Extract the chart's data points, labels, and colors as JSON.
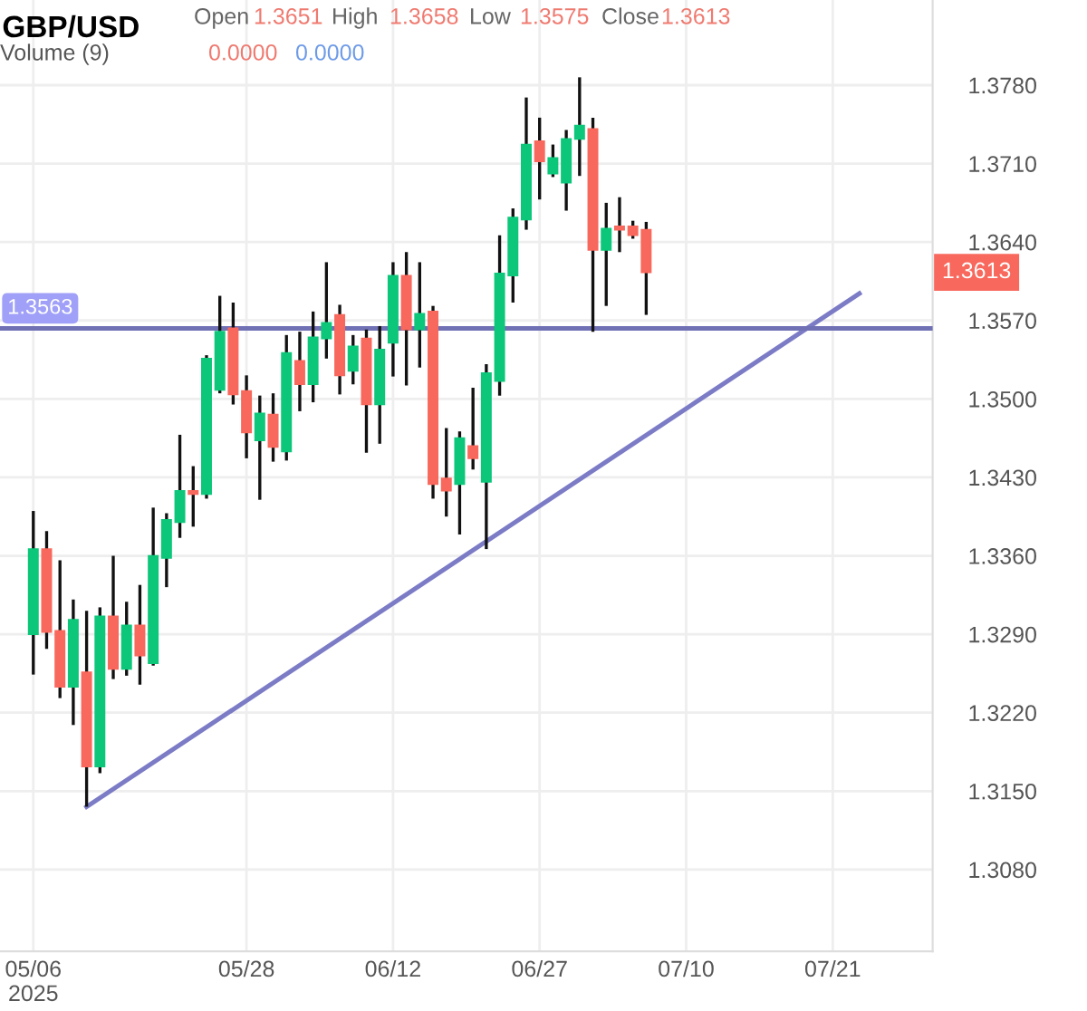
{
  "chart_data": {
    "type": "candlestick",
    "title": "GBP/USD",
    "annotations": [
      "Open",
      "1.3651",
      "High",
      "1.3658",
      "Low",
      "1.3575",
      "Close",
      "1.3613",
      "Volume (9)",
      "0.0000",
      "0.0000",
      "1.3613"
    ],
    "categories": [
      "05/06\n2025",
      null,
      null,
      null,
      null,
      null,
      null,
      null,
      null,
      null,
      null,
      null,
      null,
      null,
      null,
      null,
      "05/28",
      null,
      null,
      null,
      null,
      null,
      null,
      null,
      null,
      null,
      null,
      "06/12",
      null,
      null,
      null,
      null,
      null,
      null,
      null,
      null,
      null,
      null,
      "06/27",
      null,
      null,
      null,
      null,
      null,
      null,
      null,
      null,
      null,
      null,
      "07/10",
      null,
      null,
      null,
      null,
      null,
      null,
      null,
      null,
      null,
      null,
      "07/21",
      null,
      null,
      null,
      null,
      null,
      null,
      null
    ],
    "ohlc": [
      [
        1.329,
        1.34,
        1.3254,
        1.3366
      ],
      [
        1.3366,
        1.3382,
        1.3277,
        1.3292
      ],
      [
        1.3293,
        1.3356,
        1.3233,
        1.3243
      ],
      [
        1.3243,
        1.3321,
        1.3209,
        1.3303
      ],
      [
        1.3256,
        1.3311,
        1.3136,
        1.3172
      ],
      [
        1.3172,
        1.3314,
        1.3166,
        1.3306
      ],
      [
        1.3306,
        1.336,
        1.325,
        1.3259
      ],
      [
        1.3259,
        1.3319,
        1.3253,
        1.3298
      ],
      [
        1.3298,
        1.3334,
        1.3245,
        1.3271
      ],
      [
        1.3264,
        1.3403,
        1.3262,
        1.336
      ],
      [
        1.3358,
        1.3398,
        1.3332,
        1.3392
      ],
      [
        1.339,
        1.3468,
        1.3376,
        1.3418
      ],
      [
        1.3418,
        1.344,
        1.3386,
        1.3415
      ],
      [
        1.3415,
        1.3539,
        1.3411,
        1.3536
      ],
      [
        1.3508,
        1.3592,
        1.3505,
        1.356
      ],
      [
        1.3563,
        1.3586,
        1.3495,
        1.3504
      ],
      [
        1.3507,
        1.3521,
        1.3447,
        1.347
      ],
      [
        1.3463,
        1.3503,
        1.341,
        1.3487
      ],
      [
        1.3486,
        1.3505,
        1.3444,
        1.3457
      ],
      [
        1.3453,
        1.3557,
        1.3445,
        1.3541
      ],
      [
        1.3534,
        1.356,
        1.3489,
        1.3513
      ],
      [
        1.3513,
        1.3578,
        1.3497,
        1.3555
      ],
      [
        1.3554,
        1.3622,
        1.3536,
        1.3568
      ],
      [
        1.3575,
        1.3584,
        1.3504,
        1.3521
      ],
      [
        1.3525,
        1.3557,
        1.3513,
        1.3547
      ],
      [
        1.3554,
        1.3562,
        1.3452,
        1.3495
      ],
      [
        1.3495,
        1.3565,
        1.346,
        1.3544
      ],
      [
        1.355,
        1.3622,
        1.352,
        1.361
      ],
      [
        1.361,
        1.3631,
        1.3512,
        1.3562
      ],
      [
        1.3562,
        1.3622,
        1.3528,
        1.3576
      ],
      [
        1.3578,
        1.3583,
        1.3411,
        1.3424
      ],
      [
        1.3429,
        1.3474,
        1.3395,
        1.3418
      ],
      [
        1.3424,
        1.3471,
        1.3379,
        1.3465
      ],
      [
        1.3458,
        1.351,
        1.3437,
        1.3447
      ],
      [
        1.3426,
        1.3531,
        1.3366,
        1.3523
      ],
      [
        1.3516,
        1.3646,
        1.3503,
        1.3612
      ],
      [
        1.361,
        1.367,
        1.3586,
        1.3662
      ],
      [
        1.366,
        1.3769,
        1.3651,
        1.3727
      ],
      [
        1.373,
        1.3751,
        1.3678,
        1.3712
      ],
      [
        1.3701,
        1.3727,
        1.3698,
        1.3715
      ],
      [
        1.3693,
        1.374,
        1.3668,
        1.3732
      ],
      [
        1.3732,
        1.3787,
        1.3699,
        1.3744
      ],
      [
        1.3741,
        1.3751,
        1.356,
        1.3633
      ],
      [
        1.3633,
        1.3675,
        1.3583,
        1.3652
      ],
      [
        1.3654,
        1.368,
        1.3631,
        1.3651
      ],
      [
        1.3654,
        1.3659,
        1.3643,
        1.3646
      ],
      [
        1.3651,
        1.3658,
        1.3575,
        1.3613
      ],
      null,
      null,
      null,
      null,
      null,
      null,
      null,
      null,
      null,
      null,
      null,
      null,
      null,
      null,
      null,
      null,
      null,
      null,
      null,
      null,
      null
    ],
    "series": [
      {
        "type": "line",
        "color": "#7b7bc6",
        "values": [
          null,
          null,
          null,
          null,
          1.3136,
          null,
          null,
          null,
          null,
          null,
          null,
          null,
          null,
          null,
          null,
          null,
          null,
          null,
          null,
          null,
          null,
          null,
          null,
          null,
          null,
          null,
          null,
          null,
          null,
          null,
          null,
          null,
          null,
          null,
          null,
          null,
          null,
          null,
          null,
          null,
          null,
          null,
          null,
          null,
          null,
          null,
          null,
          null,
          null,
          null,
          null,
          null,
          null,
          null,
          null,
          null,
          null,
          null,
          null,
          null,
          null,
          null,
          1.3594,
          null,
          null,
          null,
          null,
          null
        ]
      }
    ],
    "ylim": [
      1.3007,
      1.3856
    ],
    "yticks": [
      {
        "value": 1.308,
        "label": "1.3080"
      },
      {
        "value": 1.315,
        "label": "1.3150"
      },
      {
        "value": 1.322,
        "label": "1.3220"
      },
      {
        "value": 1.329,
        "label": "1.3290"
      },
      {
        "value": 1.336,
        "label": "1.3360"
      },
      {
        "value": 1.343,
        "label": "1.3430"
      },
      {
        "value": 1.35,
        "label": "1.3500"
      },
      {
        "value": 1.357,
        "label": "1.3570"
      },
      {
        "value": 1.364,
        "label": "1.3640"
      },
      {
        "value": 1.371,
        "label": "1.3710"
      },
      {
        "value": 1.378,
        "label": "1.3780"
      }
    ],
    "ref_lines": [
      {
        "axis": "y",
        "value": 1.3563,
        "label": "1.3563",
        "color": "#7070b4"
      }
    ],
    "grid": true
  }
}
